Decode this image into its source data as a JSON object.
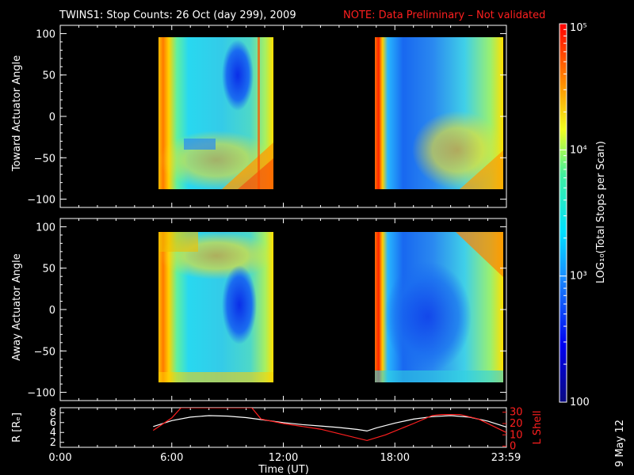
{
  "header": {
    "title": "TWINS1: Stop Counts: 26 Oct (day 299), 2009",
    "note": "NOTE: Data Preliminary – Not validated"
  },
  "footer": {
    "date_stamp": "9 May 12"
  },
  "colors": {
    "background": "#000000",
    "axes": "#ffffff",
    "note": "#ff1f1f",
    "r_line": "#ffffff",
    "l_shell_line": "#ff1f1f"
  },
  "chart_data": [
    {
      "type": "heatmap",
      "panel": "top",
      "ylabel": "Toward Actuator Angle",
      "ylim": [
        -110,
        110
      ],
      "yticks": [
        "100",
        "50",
        "0",
        "−50",
        "−100"
      ],
      "ytick_values": [
        100,
        50,
        0,
        -50,
        -100
      ],
      "xlim_hours": [
        0,
        24
      ],
      "coverage_hours": [
        [
          5.0,
          10.4
        ],
        [
          16.3,
          22.7
        ]
      ],
      "angle_range": [
        -90,
        90
      ],
      "color_scale": "log10, 100 to 1e5"
    },
    {
      "type": "heatmap",
      "panel": "middle",
      "ylabel": "Away Actuator Angle",
      "ylim": [
        -110,
        110
      ],
      "yticks": [
        "100",
        "50",
        "0",
        "−50",
        "−100"
      ],
      "ytick_values": [
        100,
        50,
        0,
        -50,
        -100
      ],
      "xlim_hours": [
        0,
        24
      ],
      "coverage_hours": [
        [
          5.0,
          10.4
        ],
        [
          16.3,
          22.7
        ]
      ],
      "angle_range": [
        -90,
        90
      ],
      "color_scale": "log10, 100 to 1e5"
    },
    {
      "type": "line",
      "panel": "bottom",
      "ylabel_left": "R [Rₑ]",
      "ylabel_right": "L Shell",
      "ylim_left": [
        1,
        9
      ],
      "yticks_left": [
        "8",
        "6",
        "4",
        "2"
      ],
      "ytick_values_left": [
        8,
        6,
        4,
        2
      ],
      "ylim_right": [
        -1,
        34
      ],
      "yticks_right": [
        "30",
        "20",
        "10",
        "0"
      ],
      "ytick_values_right": [
        30,
        20,
        10,
        0
      ],
      "xlabel": "Time (UT)",
      "xticks": [
        "0:00",
        "6:00",
        "12:00",
        "18:00",
        "23:59"
      ],
      "xtick_hours": [
        0,
        6,
        12,
        18,
        23.98
      ],
      "series": [
        {
          "name": "R",
          "axis": "left",
          "color": "#ffffff",
          "x": [
            5.0,
            6.0,
            7.0,
            8.0,
            9.0,
            10.0,
            11.0,
            12.0,
            13.0,
            14.0,
            15.0,
            16.0,
            16.5,
            17.0,
            18.0,
            19.0,
            20.0,
            21.0,
            22.0,
            23.0,
            24.0
          ],
          "values": [
            5.2,
            6.4,
            7.1,
            7.4,
            7.3,
            7.0,
            6.5,
            6.0,
            5.6,
            5.3,
            5.0,
            4.6,
            4.3,
            4.9,
            5.9,
            6.7,
            7.2,
            7.4,
            7.1,
            6.3,
            5.1
          ]
        },
        {
          "name": "L Shell",
          "axis": "right",
          "color": "#ff1f1f",
          "x": [
            5.0,
            6.0,
            6.5,
            10.3,
            10.8,
            12.0,
            14.0,
            16.5,
            17.5,
            19.0,
            20.0,
            20.5,
            21.5,
            22.5,
            24.0
          ],
          "values": [
            14,
            25,
            34,
            34,
            24,
            20,
            15,
            5,
            10,
            20,
            27,
            28,
            28,
            24,
            12
          ]
        }
      ]
    },
    {
      "type": "colorbar",
      "label": "LOG₁₀(Total Stops per Scan)",
      "ticks": [
        "10⁵",
        "10⁴",
        "10³",
        "100"
      ],
      "tick_values": [
        100000,
        10000,
        1000,
        100
      ],
      "range": [
        100,
        100000
      ]
    }
  ]
}
